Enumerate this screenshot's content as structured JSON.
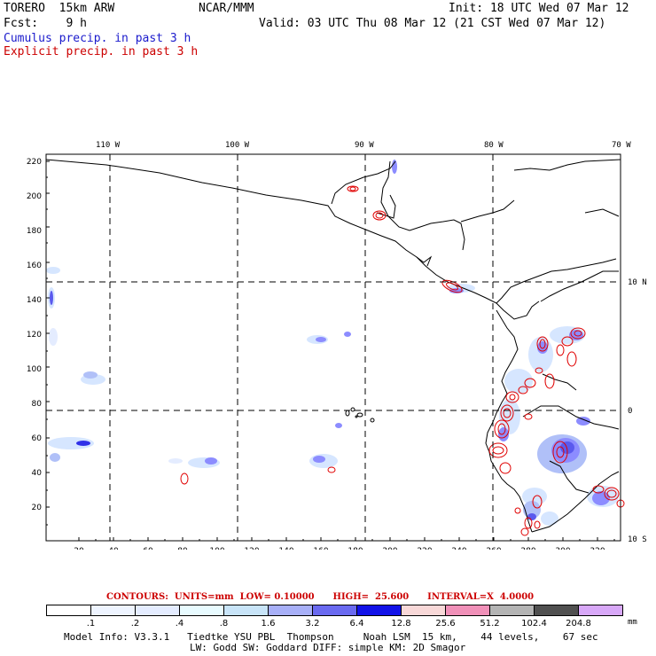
{
  "header": {
    "model": "TORERO  15km ARW",
    "org": "NCAR/MMM",
    "init": "Init: 18 UTC Wed 07 Mar 12",
    "fcst": "Fcst:    9 h",
    "valid": "Valid: 03 UTC Thu 08 Mar 12 (21 CST Wed 07 Mar 12)",
    "legend_cumulus": "Cumulus precip. in past 3 h",
    "legend_explicit": "Explicit precip. in past 3 h"
  },
  "map": {
    "lon_labels": [
      "110 W",
      "100 W",
      "90 W",
      "80 W",
      "70 W"
    ],
    "lat_labels": [
      "10 N",
      "0",
      "10 S"
    ],
    "x_ticks": [
      "20",
      "40",
      "60",
      "80",
      "100",
      "120",
      "140",
      "160",
      "180",
      "200",
      "220",
      "240",
      "260",
      "280",
      "300",
      "320"
    ],
    "y_ticks": [
      "220",
      "200",
      "180",
      "160",
      "140",
      "120",
      "100",
      "80",
      "60",
      "40",
      "20"
    ],
    "colors": {
      "coast": "#000000",
      "grid": "#000000",
      "cumulus_light": "#d6e6ff",
      "cumulus_mid": "#8c8cff",
      "cumulus_dark": "#1010e0",
      "explicit": "#e00000"
    }
  },
  "contours": {
    "text": "CONTOURS:  UNITS=mm  LOW= 0.10000      HIGH=  25.600      INTERVAL=X  4.0000"
  },
  "colorbar": {
    "labels": [
      ".1",
      ".2",
      ".4",
      ".8",
      "1.6",
      "3.2",
      "6.4",
      "12.8",
      "25.6",
      "51.2",
      "102.4",
      "204.8"
    ],
    "colors": [
      "#ffffff",
      "#eef4ff",
      "#e4ecff",
      "#e8fbff",
      "#c8e4f8",
      "#a8b0f8",
      "#6a6af0",
      "#1212e8",
      "#f8d8d8",
      "#f090b8",
      "#b4b4b4",
      "#505050",
      "#d8a8f8"
    ],
    "unit": "mm"
  },
  "footer": {
    "line1": "Model Info: V3.3.1   Tiedtke YSU PBL  Thompson     Noah LSM  15 km,    44 levels,    67 sec",
    "line2": "LW: Godd SW: Goddard DIFF: simple KM: 2D Smagor"
  }
}
